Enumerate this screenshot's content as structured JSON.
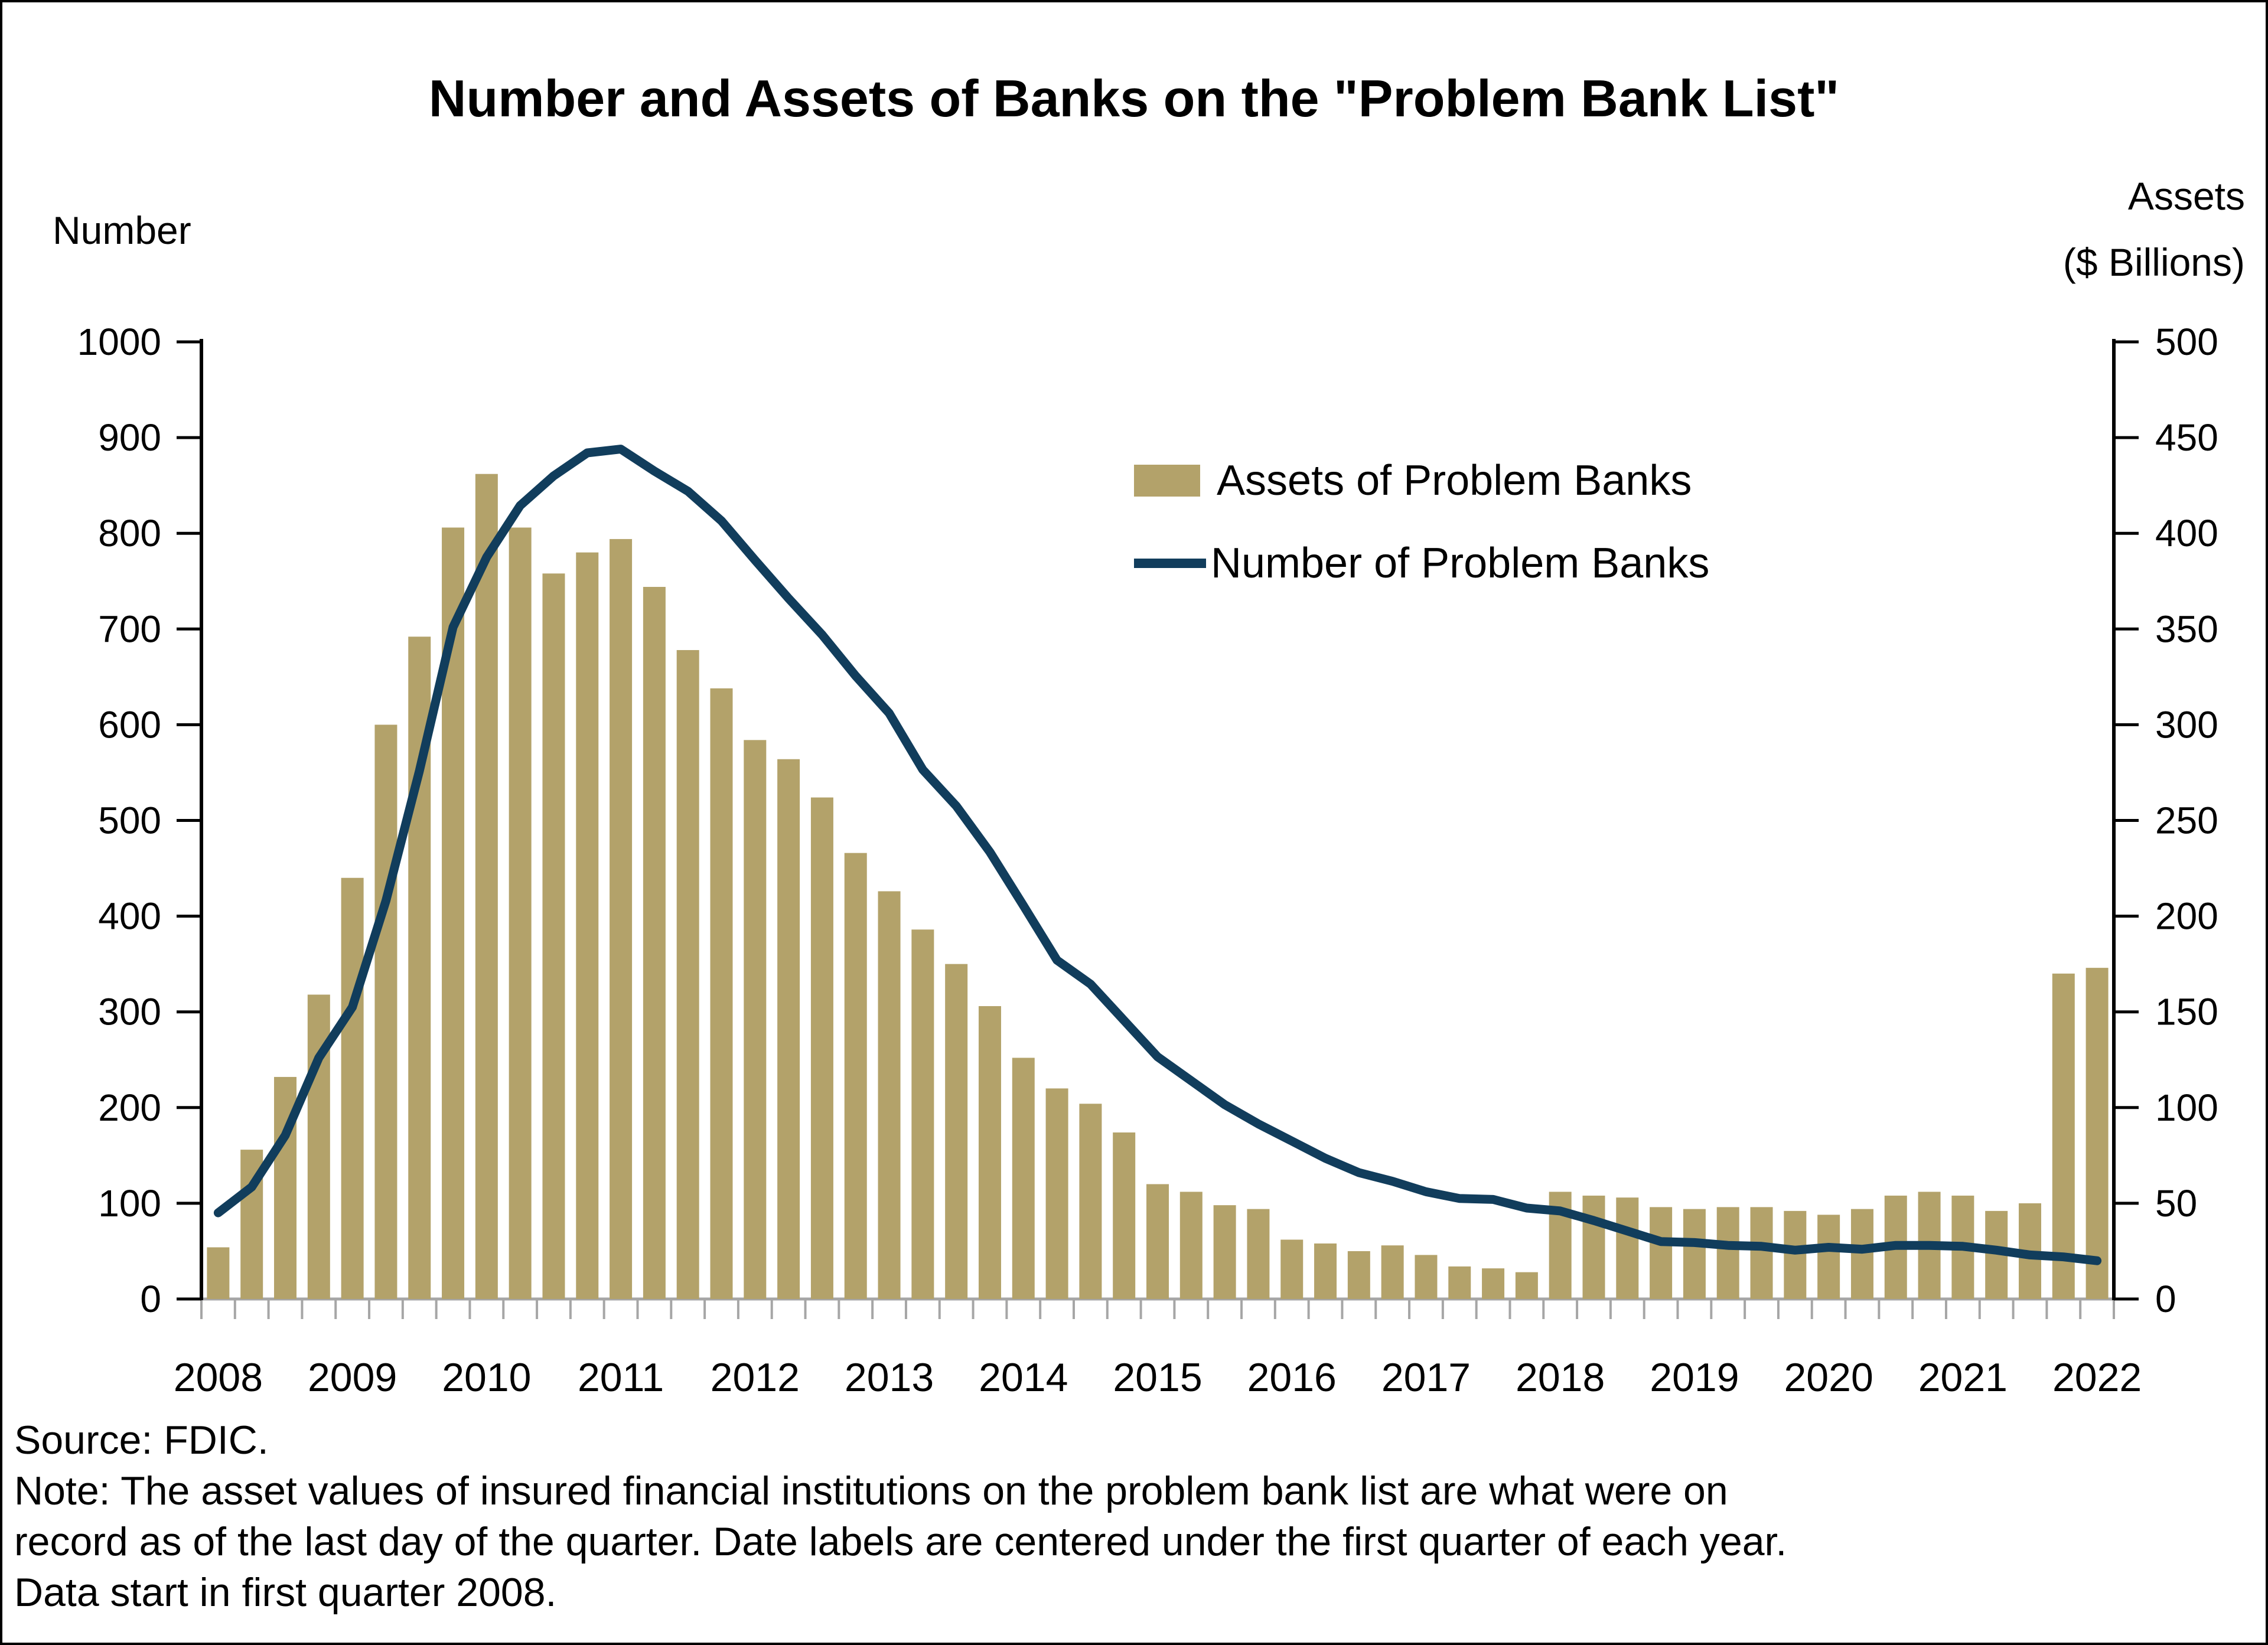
{
  "header": {
    "title": "Number and Assets of Banks on the \"Problem Bank List\""
  },
  "axes": {
    "left_title": "Number",
    "right_title_line1": "Assets",
    "right_title_line2": "($ Billions)"
  },
  "legend": {
    "assets_label": "Assets of Problem Banks",
    "number_label": "Number of Problem Banks"
  },
  "footnote": {
    "source_line": "Source: FDIC.",
    "note_line1": "Note: The asset values of insured financial institutions on the problem bank list are what were on",
    "note_line2": "record as of the last day of the quarter. Date labels are centered under the first quarter of each year.",
    "note_line3": "Data start in first quarter 2008."
  },
  "colors": {
    "bar": "#b3a26a",
    "line": "#113d5c",
    "axis_gray": "#a6a6a6",
    "axis_black": "#000000"
  },
  "chart_data": {
    "type": "bar+line",
    "title": "Number and Assets of Banks on the \"Problem Bank List\"",
    "x_quarters": [
      "2008Q1",
      "2008Q2",
      "2008Q3",
      "2008Q4",
      "2009Q1",
      "2009Q2",
      "2009Q3",
      "2009Q4",
      "2010Q1",
      "2010Q2",
      "2010Q3",
      "2010Q4",
      "2011Q1",
      "2011Q2",
      "2011Q3",
      "2011Q4",
      "2012Q1",
      "2012Q2",
      "2012Q3",
      "2012Q4",
      "2013Q1",
      "2013Q2",
      "2013Q3",
      "2013Q4",
      "2014Q1",
      "2014Q2",
      "2014Q3",
      "2014Q4",
      "2015Q1",
      "2015Q2",
      "2015Q3",
      "2015Q4",
      "2016Q1",
      "2016Q2",
      "2016Q3",
      "2016Q4",
      "2017Q1",
      "2017Q2",
      "2017Q3",
      "2017Q4",
      "2018Q1",
      "2018Q2",
      "2018Q3",
      "2018Q4",
      "2019Q1",
      "2019Q2",
      "2019Q3",
      "2019Q4",
      "2020Q1",
      "2020Q2",
      "2020Q3",
      "2020Q4",
      "2021Q1",
      "2021Q2",
      "2021Q3",
      "2021Q4",
      "2022Q1"
    ],
    "year_labels": [
      "2008",
      "2009",
      "2010",
      "2011",
      "2012",
      "2013",
      "2014",
      "2015",
      "2016",
      "2017",
      "2018",
      "2019",
      "2020",
      "2021",
      "2022"
    ],
    "series": [
      {
        "name": "Assets of Problem Banks",
        "type": "bar",
        "axis": "right",
        "unit": "$ Billions",
        "values": [
          27,
          78,
          116,
          159,
          220,
          300,
          346,
          403,
          431,
          403,
          379,
          390,
          397,
          372,
          339,
          319,
          292,
          282,
          262,
          233,
          213,
          193,
          175,
          153,
          126,
          110,
          102,
          87,
          60,
          56,
          49,
          47,
          31,
          29,
          25,
          28,
          23,
          17,
          16,
          14,
          56,
          54,
          53,
          48,
          47,
          48,
          48,
          46,
          44,
          47,
          54,
          56,
          54,
          46,
          50,
          170,
          173
        ]
      },
      {
        "name": "Number of Problem Banks",
        "type": "line",
        "axis": "left",
        "unit": "banks",
        "values": [
          90,
          117,
          171,
          252,
          305,
          416,
          552,
          702,
          775,
          829,
          860,
          884,
          888,
          865,
          844,
          813,
          772,
          732,
          694,
          651,
          612,
          553,
          515,
          467,
          411,
          354,
          329,
          291,
          253,
          228,
          203,
          183,
          165,
          147,
          132,
          123,
          112,
          105,
          104,
          95,
          92,
          82,
          71,
          60,
          59,
          56,
          55,
          51,
          54,
          52,
          56,
          56,
          55,
          51,
          46,
          44,
          40
        ]
      }
    ],
    "left_axis": {
      "label": "Number",
      "min": 0,
      "max": 1000,
      "tick_step": 100,
      "tick_labels": [
        "0",
        "100",
        "200",
        "300",
        "400",
        "500",
        "600",
        "700",
        "800",
        "900",
        "1000"
      ]
    },
    "right_axis": {
      "label": "Assets ($ Billions)",
      "min": 0,
      "max": 500,
      "tick_step": 50,
      "tick_labels": [
        "0",
        "50",
        "100",
        "150",
        "200",
        "250",
        "300",
        "350",
        "400",
        "450",
        "500"
      ]
    },
    "layout_notes": "quarterly bars; date labels centered under first quarter of each year; legend inside plot upper middle; grid off"
  }
}
